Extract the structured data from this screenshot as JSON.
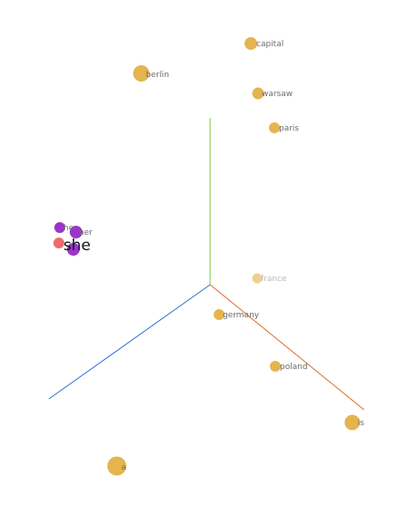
{
  "colors": {
    "x_axis": "#e06a2a",
    "y_axis": "#77cc33",
    "z_axis": "#2a6fd6",
    "point": "#e5b44f",
    "point_faded": "#efd08e",
    "cluster_purple": "#9b35c9",
    "cluster_red": "#f06b6b",
    "label": "#6b6b6b",
    "label_faded": "#b9b9b9",
    "focus_label": "#111111"
  },
  "points": [
    {
      "label": "capital"
    },
    {
      "label": "berlin"
    },
    {
      "label": "warsaw"
    },
    {
      "label": "paris"
    },
    {
      "label": "france"
    },
    {
      "label": "germany"
    },
    {
      "label": "poland"
    },
    {
      "label": "is"
    },
    {
      "label": "a"
    }
  ],
  "cluster": {
    "labels": [
      "he",
      "her"
    ],
    "focus_label": "she"
  }
}
